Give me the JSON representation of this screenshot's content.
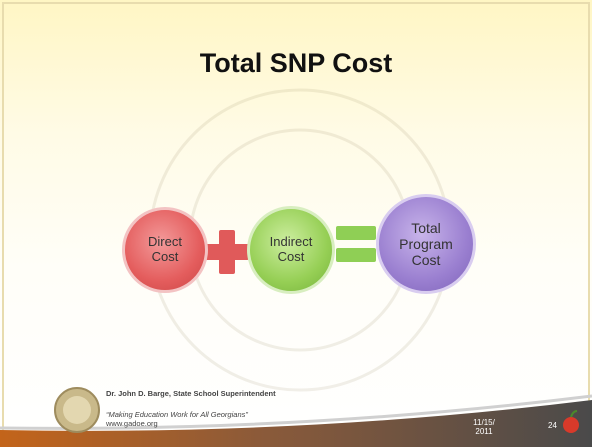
{
  "slide": {
    "title": "Total SNP Cost",
    "equation": [
      {
        "label": "Direct Cost"
      },
      {
        "label": "Indirect Cost"
      },
      {
        "label": "Total Program Cost"
      }
    ],
    "footer": {
      "name": "Dr. John D. Barge, State School Superintendent",
      "motto": "“Making Education Work for All Georgians”",
      "url": "www.gadoe.org",
      "date": "11/15/ 2011",
      "page": "24"
    }
  }
}
